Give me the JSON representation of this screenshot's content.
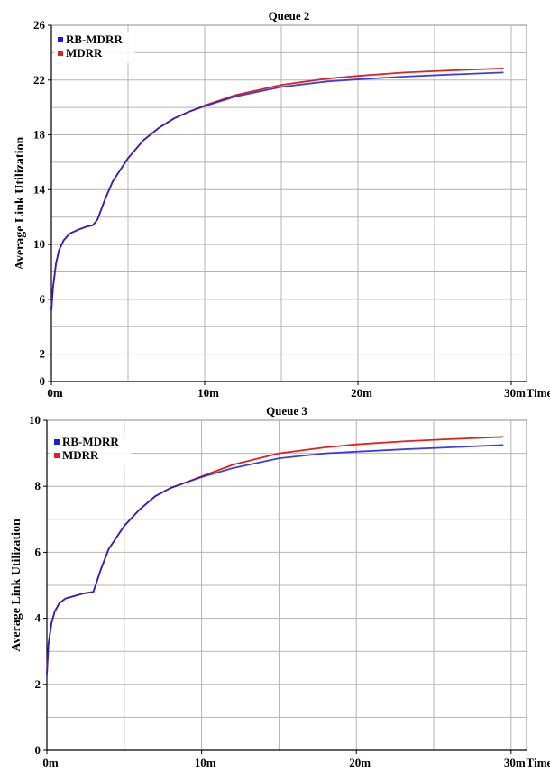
{
  "chart_data": [
    {
      "type": "line",
      "title": "Queue 2",
      "ylabel": "Average Link Utilization",
      "xlabel": "Time",
      "xlim": [
        0,
        31
      ],
      "ylim": [
        0,
        26
      ],
      "x_ticks": [
        0,
        10,
        20,
        30
      ],
      "x_tick_labels": [
        "0m",
        "10m",
        "20m",
        "30m"
      ],
      "y_ticks": [
        0,
        2,
        6,
        10,
        14,
        18,
        22,
        26
      ],
      "y_tick_labels": [
        "0",
        "2",
        "6",
        "10",
        "14",
        "18",
        "22",
        "26"
      ],
      "grid": true,
      "legend_position": "top-left",
      "x": [
        0,
        0.1,
        0.3,
        0.5,
        0.8,
        1.2,
        1.8,
        2.3,
        2.7,
        3,
        3.5,
        4,
        5,
        6,
        7,
        8,
        9,
        10,
        12,
        15,
        18,
        20,
        23,
        26,
        29.5
      ],
      "series": [
        {
          "name": "RB-MDRR",
          "color": "#1c1cd8",
          "values": [
            5.2,
            6.8,
            8.6,
            9.6,
            10.3,
            10.8,
            11.1,
            11.3,
            11.4,
            11.8,
            13.3,
            14.6,
            16.3,
            17.6,
            18.5,
            19.2,
            19.7,
            20.1,
            20.8,
            21.5,
            21.9,
            22.05,
            22.25,
            22.4,
            22.55
          ]
        },
        {
          "name": "MDRR",
          "color": "#e02020",
          "values": [
            5.2,
            6.8,
            8.6,
            9.6,
            10.3,
            10.8,
            11.1,
            11.3,
            11.4,
            11.8,
            13.3,
            14.6,
            16.3,
            17.6,
            18.5,
            19.2,
            19.7,
            20.15,
            20.9,
            21.65,
            22.1,
            22.3,
            22.55,
            22.7,
            22.85
          ]
        }
      ]
    },
    {
      "type": "line",
      "title": "Queue 3",
      "ylabel": "Average Link Utilization",
      "xlabel": "Time",
      "xlim": [
        0,
        31
      ],
      "ylim": [
        0,
        10
      ],
      "x_ticks": [
        0,
        10,
        20,
        30
      ],
      "x_tick_labels": [
        "0m",
        "10m",
        "20m",
        "30m"
      ],
      "y_ticks": [
        0,
        2,
        4,
        6,
        8,
        10
      ],
      "y_tick_labels": [
        "0",
        "2",
        "4",
        "6",
        "8",
        "10"
      ],
      "grid": true,
      "legend_position": "top-left",
      "x": [
        0,
        0.1,
        0.3,
        0.5,
        0.8,
        1.2,
        1.8,
        2.3,
        2.7,
        3,
        3.5,
        4,
        5,
        6,
        7,
        8,
        9,
        10,
        12,
        15,
        18,
        20,
        23,
        26,
        29.5
      ],
      "series": [
        {
          "name": "RB-MDRR",
          "color": "#1c1cd8",
          "values": [
            2.3,
            3.2,
            3.85,
            4.2,
            4.45,
            4.6,
            4.68,
            4.75,
            4.78,
            4.8,
            5.5,
            6.1,
            6.8,
            7.3,
            7.7,
            7.95,
            8.12,
            8.28,
            8.55,
            8.85,
            9.0,
            9.05,
            9.12,
            9.18,
            9.25
          ]
        },
        {
          "name": "MDRR",
          "color": "#e02020",
          "values": [
            2.3,
            3.2,
            3.85,
            4.2,
            4.45,
            4.6,
            4.68,
            4.75,
            4.78,
            4.8,
            5.5,
            6.1,
            6.8,
            7.3,
            7.7,
            7.95,
            8.12,
            8.3,
            8.65,
            9.0,
            9.18,
            9.27,
            9.36,
            9.43,
            9.5
          ]
        }
      ]
    }
  ]
}
